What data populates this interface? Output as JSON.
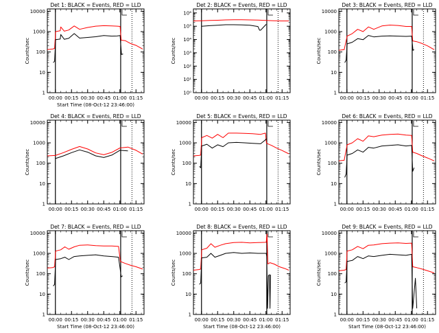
{
  "page": {
    "background": "#ffffff",
    "colors": {
      "events": "#000000",
      "lld": "#ff0000",
      "axes": "#000000"
    }
  },
  "chart_data": [
    {
      "type": "line",
      "title": "Det 1: BLACK = Events, RED = LLD",
      "xlabel": "Start Time (08-Oct-12 23:46:00)",
      "ylabel": "Counts/sec",
      "yscale": "log",
      "ylim": [
        1,
        13000
      ],
      "xlim": [
        -3,
        33
      ],
      "x_ticks": [
        "00:00",
        "00:15",
        "00:30",
        "00:45",
        "01:00",
        "01:15"
      ],
      "y_ticks": [
        "1",
        "10",
        "100",
        "1000",
        "10000"
      ],
      "vlines_solid": [
        0,
        24.3
      ],
      "vlines_dotted": [
        28.5
      ],
      "series": [
        {
          "name": "Events",
          "color": "#000000",
          "x": [
            -0.8,
            -0.3,
            0.1,
            1.8,
            2.0,
            3.3,
            5.0,
            7.0,
            9.0,
            12.0,
            15.0,
            18.0,
            21.0,
            23.0,
            24.1,
            24.6,
            25.2
          ],
          "y": [
            30,
            35,
            400,
            430,
            720,
            420,
            470,
            800,
            480,
            520,
            560,
            640,
            600,
            610,
            640,
            75,
            80
          ]
        },
        {
          "name": "LLD",
          "color": "#ff0000",
          "x": [
            -3.0,
            -1.0,
            -0.3,
            0.1,
            1.8,
            2.0,
            3.3,
            5.0,
            7.0,
            9.0,
            12.0,
            15.0,
            18.0,
            21.0,
            23.0,
            24.1,
            24.5,
            26.0,
            28.0,
            30.0,
            32.5
          ],
          "y": [
            130,
            140,
            150,
            1000,
            1100,
            1700,
            1050,
            1200,
            1900,
            1300,
            1600,
            1850,
            1950,
            1900,
            1850,
            1800,
            380,
            360,
            260,
            210,
            140
          ]
        }
      ]
    },
    {
      "type": "line",
      "title": "Det 2: BLACK = Events, RED = LLD",
      "xlabel": "",
      "ylabel": "Counts/sec",
      "yscale": "log",
      "ylim": [
        1,
        2000000
      ],
      "xlim": [
        -3,
        33
      ],
      "x_ticks": [
        "00:00",
        "00:15",
        "00:30",
        "00:45",
        "01:00",
        "01:15"
      ],
      "y_ticks": [
        "10⁰",
        "10¹",
        "10²",
        "10³",
        "10⁴",
        "10⁵",
        "10⁶"
      ],
      "vlines_solid": [
        0,
        24.3
      ],
      "vlines_dotted": [
        28.5
      ],
      "series": [
        {
          "name": "Events",
          "color": "#000000",
          "x": [
            0.1,
            3.0,
            6.0,
            9.0,
            12.0,
            15.0,
            18.0,
            21.0,
            21.6,
            22.0,
            24.1
          ],
          "y": [
            100000,
            110000,
            120000,
            130000,
            130000,
            125000,
            120000,
            95000,
            50000,
            50000,
            140000
          ]
        },
        {
          "name": "LLD",
          "color": "#ff0000",
          "x": [
            -3.0,
            0.1,
            3.0,
            6.0,
            9.0,
            12.0,
            15.0,
            18.0,
            21.0,
            24.0,
            27.0,
            30.0,
            32.5
          ],
          "y": [
            250000,
            260000,
            270000,
            280000,
            300000,
            310000,
            310000,
            300000,
            290000,
            270000,
            260000,
            250000,
            250000
          ]
        }
      ]
    },
    {
      "type": "line",
      "title": "Det 3: BLACK = Events, RED = LLD",
      "xlabel": "",
      "ylabel": "Counts/sec",
      "yscale": "log",
      "ylim": [
        1,
        13000
      ],
      "xlim": [
        -3,
        33
      ],
      "x_ticks": [
        "00:00",
        "00:15",
        "00:30",
        "00:45",
        "01:00",
        "01:15"
      ],
      "y_ticks": [
        "1",
        "10",
        "100",
        "1000",
        "10000"
      ],
      "vlines_solid": [
        0,
        24.3
      ],
      "vlines_dotted": [
        28.5
      ],
      "series": [
        {
          "name": "Events",
          "color": "#000000",
          "x": [
            -0.8,
            -0.3,
            0.1,
            2.0,
            4.0,
            6.0,
            8.0,
            10.0,
            13.0,
            16.0,
            19.0,
            22.0,
            24.1,
            24.6,
            25.0
          ],
          "y": [
            30,
            40,
            250,
            300,
            450,
            400,
            650,
            550,
            600,
            620,
            600,
            580,
            600,
            120,
            130
          ]
        },
        {
          "name": "LLD",
          "color": "#ff0000",
          "x": [
            -3.0,
            -1.0,
            0.1,
            2.0,
            4.0,
            6.0,
            8.0,
            10.0,
            13.0,
            16.0,
            19.0,
            22.0,
            24.1,
            24.5,
            26.0,
            28.0,
            30.0,
            32.5
          ],
          "y": [
            120,
            130,
            600,
            800,
            1300,
            1000,
            1700,
            1300,
            1900,
            2100,
            2000,
            1800,
            1800,
            350,
            320,
            260,
            200,
            130
          ]
        }
      ]
    },
    {
      "type": "line",
      "title": "Det 4: BLACK = Events, RED = LLD",
      "xlabel": "",
      "ylabel": "Counts/sec",
      "yscale": "log",
      "ylim": [
        1,
        13000
      ],
      "xlim": [
        -3,
        33
      ],
      "x_ticks": [
        "00:00",
        "00:15",
        "00:30",
        "00:45",
        "01:00",
        "01:15"
      ],
      "y_ticks": [
        "1",
        "10",
        "100",
        "1000",
        "10000"
      ],
      "vlines_solid": [
        0,
        24.3
      ],
      "vlines_dotted": [
        28.5
      ],
      "series": [
        {
          "name": "Events",
          "color": "#000000",
          "x": [
            0,
            3,
            6,
            9,
            12,
            15,
            18,
            21,
            24,
            27
          ],
          "y": [
            170,
            230,
            330,
            450,
            350,
            230,
            190,
            250,
            430,
            400
          ]
        },
        {
          "name": "LLD",
          "color": "#ff0000",
          "x": [
            -3,
            0,
            3,
            6,
            9,
            12,
            15,
            18,
            21,
            24,
            27,
            30,
            32.5
          ],
          "y": [
            230,
            240,
            330,
            480,
            660,
            500,
            320,
            260,
            340,
            560,
            620,
            430,
            280
          ]
        }
      ]
    },
    {
      "type": "line",
      "title": "Det 5: BLACK = Events, RED = LLD",
      "xlabel": "",
      "ylabel": "Counts/sec",
      "yscale": "log",
      "ylim": [
        1,
        13000
      ],
      "xlim": [
        -3,
        33
      ],
      "x_ticks": [
        "00:00",
        "00:15",
        "00:30",
        "00:45",
        "01:00",
        "01:15"
      ],
      "y_ticks": [
        "1",
        "10",
        "100",
        "1000",
        "10000"
      ],
      "vlines_solid": [
        0,
        24.3
      ],
      "vlines_dotted": [
        28.5
      ],
      "series": [
        {
          "name": "Events",
          "color": "#000000",
          "x": [
            -0.8,
            -0.3,
            0.1,
            2.0,
            4.0,
            6.0,
            8.0,
            10.0,
            13.0,
            16.0,
            19.0,
            22.0,
            23.8,
            24.1
          ],
          "y": [
            70,
            60,
            700,
            850,
            550,
            800,
            650,
            1000,
            1050,
            1000,
            950,
            900,
            1400,
            1600
          ]
        },
        {
          "name": "LLD",
          "color": "#ff0000",
          "x": [
            -3.0,
            -1.0,
            -0.3,
            0.1,
            2.0,
            4.0,
            6.0,
            8.0,
            10.0,
            13.0,
            16.0,
            19.0,
            22.0,
            23.8,
            24.2,
            26.0,
            28.0,
            30.0,
            32.5
          ],
          "y": [
            230,
            240,
            250,
            1800,
            2300,
            1700,
            2600,
            1800,
            3000,
            3000,
            2900,
            2800,
            2600,
            3000,
            950,
            750,
            550,
            420,
            290
          ]
        }
      ]
    },
    {
      "type": "line",
      "title": "Det 6: BLACK = Events, RED = LLD",
      "xlabel": "",
      "ylabel": "Counts/sec",
      "yscale": "log",
      "ylim": [
        1,
        13000
      ],
      "xlim": [
        -3,
        33
      ],
      "x_ticks": [
        "00:00",
        "00:15",
        "00:30",
        "00:45",
        "01:00",
        "01:15"
      ],
      "y_ticks": [
        "1",
        "10",
        "100",
        "1000",
        "10000"
      ],
      "vlines_solid": [
        0,
        24.3
      ],
      "vlines_dotted": [
        28.5
      ],
      "series": [
        {
          "name": "Events",
          "color": "#000000",
          "x": [
            -0.8,
            -0.3,
            0.1,
            2.0,
            4.0,
            6.0,
            8.0,
            10.0,
            13.0,
            16.0,
            19.0,
            22.0,
            24.1,
            24.5,
            25.0
          ],
          "y": [
            20,
            30,
            250,
            300,
            450,
            350,
            600,
            550,
            700,
            750,
            800,
            700,
            750,
            40,
            60
          ]
        },
        {
          "name": "LLD",
          "color": "#ff0000",
          "x": [
            -3.0,
            -1.0,
            0.1,
            2.0,
            4.0,
            6.0,
            8.0,
            10.0,
            13.0,
            16.0,
            19.0,
            22.0,
            24.1,
            24.5,
            26.0,
            28.0,
            30.0,
            32.5
          ],
          "y": [
            130,
            140,
            800,
            1000,
            1600,
            1200,
            2200,
            2000,
            2400,
            2600,
            2700,
            2400,
            2300,
            350,
            300,
            230,
            180,
            130
          ]
        }
      ]
    },
    {
      "type": "line",
      "title": "Det 7: BLACK = Events, RED = LLD",
      "xlabel": "Start Time (08-Oct-12 23:46:00)",
      "ylabel": "Counts/sec",
      "yscale": "log",
      "ylim": [
        1,
        13000
      ],
      "xlim": [
        -3,
        33
      ],
      "x_ticks": [
        "00:00",
        "00:15",
        "00:30",
        "00:45",
        "01:00",
        "01:15"
      ],
      "y_ticks": [
        "1",
        "10",
        "100",
        "1000",
        "10000"
      ],
      "vlines_solid": [
        0,
        24.3
      ],
      "vlines_dotted": [
        28.5
      ],
      "series": [
        {
          "name": "Events",
          "color": "#000000",
          "x": [
            -0.8,
            -0.3,
            0.1,
            2.0,
            3.5,
            5.0,
            7.0,
            9.0,
            12.0,
            15.0,
            18.0,
            21.0,
            23.5,
            24.1,
            24.5,
            25.0
          ],
          "y": [
            25,
            30,
            500,
            550,
            650,
            500,
            700,
            750,
            800,
            850,
            750,
            700,
            650,
            180,
            70,
            80
          ]
        },
        {
          "name": "LLD",
          "color": "#ff0000",
          "x": [
            -3.0,
            -1.0,
            -0.3,
            0.1,
            2.0,
            3.5,
            5.0,
            7.0,
            9.0,
            12.0,
            15.0,
            18.0,
            21.0,
            23.5,
            24.2,
            26.0,
            28.0,
            30.0,
            32.5
          ],
          "y": [
            190,
            200,
            220,
            1300,
            1500,
            2100,
            1600,
            2100,
            2500,
            2600,
            2400,
            2300,
            2300,
            2200,
            400,
            320,
            260,
            220,
            170
          ]
        }
      ]
    },
    {
      "type": "line",
      "title": "Det 8: BLACK = Events, RED = LLD",
      "xlabel": "Start Time (08-Oct-12 23:46:00)",
      "ylabel": "Counts/sec",
      "yscale": "log",
      "ylim": [
        1,
        13000
      ],
      "xlim": [
        -3,
        33
      ],
      "x_ticks": [
        "00:00",
        "00:15",
        "00:30",
        "00:45",
        "01:00",
        "01:15"
      ],
      "y_ticks": [
        "1",
        "10",
        "100",
        "1000",
        "10000"
      ],
      "vlines_solid": [
        0,
        24.3
      ],
      "vlines_dotted": [
        28.5
      ],
      "series": [
        {
          "name": "Events",
          "color": "#000000",
          "x": [
            -0.8,
            -0.3,
            0.1,
            2.0,
            3.5,
            5.0,
            7.0,
            9.0,
            12.0,
            15.0,
            18.0,
            21.0,
            24.1,
            24.3,
            24.6,
            24.9,
            25.3,
            25.5,
            25.7
          ],
          "y": [
            30,
            35,
            600,
            650,
            1000,
            650,
            800,
            1000,
            1100,
            1000,
            1050,
            1000,
            1000,
            700,
            2,
            80,
            90,
            2,
            90
          ]
        },
        {
          "name": "LLD",
          "color": "#ff0000",
          "x": [
            -3.0,
            -1.0,
            -0.3,
            0.1,
            2.0,
            3.5,
            5.0,
            7.0,
            9.0,
            12.0,
            15.0,
            18.0,
            21.0,
            24.1,
            24.4,
            24.7,
            25.5,
            27.0,
            29.0,
            31.0,
            32.5
          ],
          "y": [
            150,
            160,
            170,
            1500,
            1800,
            3000,
            2000,
            2500,
            3000,
            3400,
            3500,
            3300,
            3400,
            3500,
            9000,
            300,
            350,
            300,
            220,
            180,
            150
          ]
        }
      ]
    },
    {
      "type": "line",
      "title": "Det 9: BLACK = Events, RED = LLD",
      "xlabel": "Start Time (08-Oct-12 23:46:00)",
      "ylabel": "Counts/sec",
      "yscale": "log",
      "ylim": [
        1,
        13000
      ],
      "xlim": [
        -3,
        33
      ],
      "x_ticks": [
        "00:00",
        "00:15",
        "00:30",
        "00:45",
        "01:00",
        "01:15"
      ],
      "y_ticks": [
        "1",
        "10",
        "100",
        "1000",
        "10000"
      ],
      "vlines_solid": [
        0,
        24.3
      ],
      "vlines_dotted": [
        28.5
      ],
      "series": [
        {
          "name": "Events",
          "color": "#000000",
          "x": [
            -0.8,
            -0.3,
            0.1,
            2.0,
            4.0,
            6.0,
            8.0,
            10.0,
            13.0,
            16.0,
            19.0,
            22.0,
            24.1,
            24.5,
            25.5,
            26.0
          ],
          "y": [
            35,
            40,
            400,
            450,
            700,
            550,
            750,
            700,
            800,
            900,
            850,
            800,
            900,
            2,
            60,
            2
          ]
        },
        {
          "name": "LLD",
          "color": "#ff0000",
          "x": [
            -3.0,
            -1.0,
            -0.3,
            0.1,
            2.0,
            4.0,
            6.0,
            8.0,
            10.0,
            13.0,
            16.0,
            19.0,
            22.0,
            24.1,
            24.5,
            26.0,
            28.0,
            30.0,
            32.5
          ],
          "y": [
            140,
            150,
            160,
            1300,
            1500,
            2200,
            1700,
            2500,
            2600,
            3000,
            3200,
            3300,
            3100,
            3200,
            220,
            200,
            170,
            140,
            110
          ]
        }
      ]
    }
  ]
}
